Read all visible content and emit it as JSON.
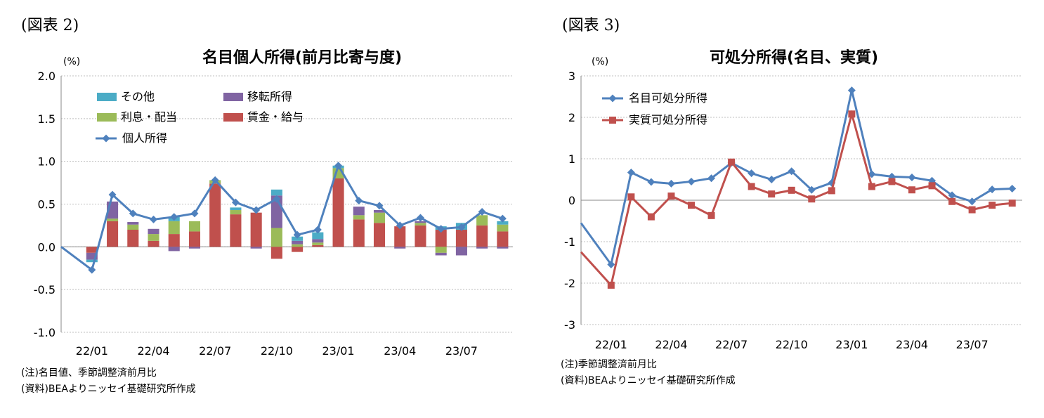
{
  "left": {
    "fig_label": "(図表 2)",
    "title": "名目個人所得(前月比寄与度)",
    "unit": "(%)",
    "note1": "(注)名目値、季節調整済前月比",
    "note2": "(資料)BEAよりニッセイ基礎研究所作成"
  },
  "right": {
    "fig_label": "(図表 3)",
    "title": "可処分所得(名目、実質)",
    "unit": "(%)",
    "note1": "(注)季節調整済前月比",
    "note2": "(資料)BEAよりニッセイ基礎研究所作成"
  },
  "chart_data": [
    {
      "type": "bar",
      "stacked": true,
      "title": "名目個人所得(前月比寄与度)",
      "ylabel": "(%)",
      "ylim": [
        -1.0,
        2.0
      ],
      "yticks": [
        "2.0",
        "1.5",
        "1.0",
        "0.5",
        "0.0",
        "-0.5",
        "-1.0"
      ],
      "ytick_values": [
        2.0,
        1.5,
        1.0,
        0.5,
        0.0,
        -0.5,
        -1.0
      ],
      "categories": [
        "21/12",
        "22/01",
        "22/02",
        "22/03",
        "22/04",
        "22/05",
        "22/06",
        "22/07",
        "22/08",
        "22/09",
        "22/10",
        "22/11",
        "22/12",
        "23/01",
        "23/02",
        "23/03",
        "23/04",
        "23/05",
        "23/06",
        "23/07",
        "23/08",
        "23/09"
      ],
      "xtick_labels": [
        {
          "index": 1,
          "label": "22/01"
        },
        {
          "index": 4,
          "label": "22/04"
        },
        {
          "index": 7,
          "label": "22/07"
        },
        {
          "index": 10,
          "label": "22/10"
        },
        {
          "index": 13,
          "label": "23/01"
        },
        {
          "index": 16,
          "label": "23/04"
        },
        {
          "index": 19,
          "label": "23/07"
        }
      ],
      "grid": true,
      "legend_placement": "top-left",
      "series": [
        {
          "name": "その他",
          "kind": "bar",
          "color": "#4bacc6",
          "values": [
            null,
            -0.03,
            0.0,
            0.0,
            0.0,
            0.05,
            0.0,
            0.0,
            0.03,
            0.0,
            0.07,
            0.05,
            0.08,
            0.03,
            0.0,
            0.0,
            0.0,
            0.0,
            0.04,
            0.08,
            0.0,
            0.04
          ]
        },
        {
          "name": "移転所得",
          "kind": "bar",
          "color": "#8064a2",
          "values": [
            null,
            -0.08,
            0.2,
            0.03,
            0.06,
            -0.05,
            -0.02,
            0.0,
            0.0,
            -0.02,
            0.38,
            0.04,
            0.04,
            0.0,
            0.1,
            0.03,
            -0.02,
            0.02,
            -0.03,
            -0.1,
            -0.02,
            -0.02
          ]
        },
        {
          "name": "利息・配当",
          "kind": "bar",
          "color": "#9bbb59",
          "values": [
            null,
            0.0,
            0.03,
            0.06,
            0.08,
            0.15,
            0.12,
            0.04,
            0.05,
            0.0,
            0.22,
            0.03,
            0.03,
            0.12,
            0.05,
            0.12,
            0.0,
            0.03,
            -0.07,
            0.0,
            0.12,
            0.08
          ]
        },
        {
          "name": "賃金・給与",
          "kind": "bar",
          "color": "#c0504d",
          "values": [
            null,
            -0.07,
            0.3,
            0.2,
            0.07,
            0.15,
            0.18,
            0.74,
            0.38,
            0.4,
            -0.14,
            -0.06,
            0.02,
            0.8,
            0.32,
            0.28,
            0.24,
            0.25,
            0.2,
            0.2,
            0.25,
            0.18
          ]
        },
        {
          "name": "個人所得",
          "kind": "line",
          "color": "#4f81bd",
          "values": [
            0.0,
            -0.27,
            0.61,
            0.39,
            0.32,
            0.35,
            0.39,
            0.78,
            0.52,
            0.43,
            0.56,
            0.14,
            0.2,
            0.95,
            0.54,
            0.48,
            0.25,
            0.34,
            0.21,
            0.23,
            0.41,
            0.33
          ]
        }
      ]
    },
    {
      "type": "line",
      "title": "可処分所得(名目、実質)",
      "ylabel": "(%)",
      "ylim": [
        -3,
        3
      ],
      "yticks": [
        "3",
        "2",
        "1",
        "0",
        "-1",
        "-2",
        "-3"
      ],
      "ytick_values": [
        3,
        2,
        1,
        0,
        -1,
        -2,
        -3
      ],
      "categories": [
        "21/12",
        "22/01",
        "22/02",
        "22/03",
        "22/04",
        "22/05",
        "22/06",
        "22/07",
        "22/08",
        "22/09",
        "22/10",
        "22/11",
        "22/12",
        "23/01",
        "23/02",
        "23/03",
        "23/04",
        "23/05",
        "23/06",
        "23/07",
        "23/08",
        "23/09"
      ],
      "xtick_labels": [
        {
          "index": 1,
          "label": "22/01"
        },
        {
          "index": 4,
          "label": "22/04"
        },
        {
          "index": 7,
          "label": "22/07"
        },
        {
          "index": 10,
          "label": "22/10"
        },
        {
          "index": 13,
          "label": "23/01"
        },
        {
          "index": 16,
          "label": "23/04"
        },
        {
          "index": 19,
          "label": "23/07"
        }
      ],
      "grid": true,
      "legend_placement": "top-left",
      "series": [
        {
          "name": "名目可処分所得",
          "color": "#4f81bd",
          "marker": "diamond",
          "values": [
            -0.55,
            -1.55,
            0.67,
            0.44,
            0.4,
            0.45,
            0.53,
            0.9,
            0.65,
            0.5,
            0.7,
            0.25,
            0.42,
            2.65,
            0.63,
            0.57,
            0.55,
            0.47,
            0.12,
            -0.03,
            0.26,
            0.28
          ]
        },
        {
          "name": "実質可処分所得",
          "color": "#c0504d",
          "marker": "square",
          "values": [
            -1.25,
            -2.05,
            0.08,
            -0.4,
            0.1,
            -0.12,
            -0.37,
            0.92,
            0.33,
            0.15,
            0.24,
            0.03,
            0.23,
            2.08,
            0.33,
            0.45,
            0.25,
            0.35,
            -0.03,
            -0.23,
            -0.12,
            -0.07
          ]
        }
      ]
    }
  ]
}
